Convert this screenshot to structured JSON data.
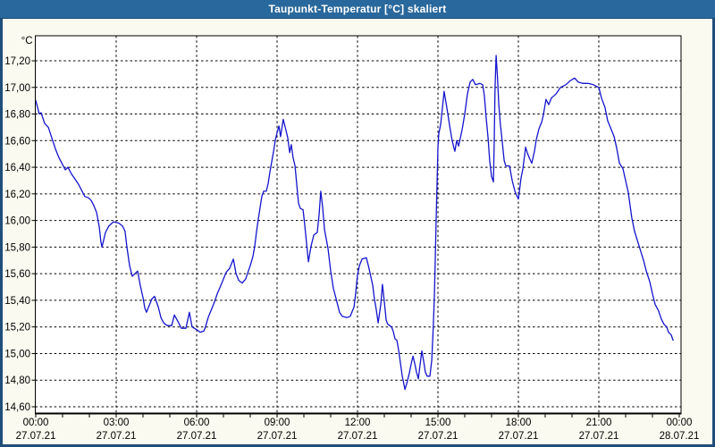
{
  "window": {
    "titlebar": {
      "title": "Taupunkt-Temperatur [°C] skaliert"
    }
  },
  "colors": {
    "titlebar_bg": "#29689c",
    "titlebar_text": "#ffffff",
    "frame": "#1f4e7b",
    "page_bg": "#fafaf0",
    "plot_bg": "#ffffff",
    "grid": "#000000",
    "axis": "#000000",
    "line": "#1414cc",
    "label_text": "#000000"
  },
  "chart_data": {
    "type": "line",
    "title": "Taupunkt-Temperatur [°C] skaliert",
    "y_unit": "°C",
    "grid": {
      "style": "dashed",
      "color": "#000000",
      "horizontal": true,
      "vertical": true
    },
    "legend": "none",
    "ylim": [
      14.57,
      17.39
    ],
    "xlim_hours": [
      0,
      24.07
    ],
    "y_axis": {
      "tick_values": [
        14.6,
        14.8,
        15.0,
        15.2,
        15.4,
        15.6,
        15.8,
        16.0,
        16.2,
        16.4,
        16.6,
        16.8,
        17.0,
        17.2
      ],
      "tick_labels": [
        "14,60",
        "14,80",
        "15,00",
        "15,20",
        "15,40",
        "15,60",
        "15,80",
        "16,00",
        "16,20",
        "16,40",
        "16,60",
        "16,80",
        "17,00",
        "17,20"
      ]
    },
    "x_axis": {
      "minor_tick_every_hours": 1,
      "major_gridline_hours": [
        3,
        6,
        9,
        12,
        15,
        18,
        21
      ],
      "ticks": [
        {
          "hour": 0,
          "time": "00:00",
          "date": "27.07.21"
        },
        {
          "hour": 3,
          "time": "03:00",
          "date": "27.07.21"
        },
        {
          "hour": 6,
          "time": "06:00",
          "date": "27.07.21"
        },
        {
          "hour": 9,
          "time": "09:00",
          "date": "27.07.21"
        },
        {
          "hour": 12,
          "time": "12:00",
          "date": "27.07.21"
        },
        {
          "hour": 15,
          "time": "15:00",
          "date": "27.07.21"
        },
        {
          "hour": 18,
          "time": "18:00",
          "date": "27.07.21"
        },
        {
          "hour": 21,
          "time": "21:00",
          "date": "27.07.21"
        },
        {
          "hour": 24,
          "time": "00:00",
          "date": "28.07.21"
        }
      ]
    },
    "series": [
      {
        "name": "Taupunkt-Temperatur",
        "color": "#1414cc",
        "points_hour_degc": [
          [
            0,
            16.9
          ],
          [
            0.08,
            16.84
          ],
          [
            0.13,
            16.8
          ],
          [
            0.2,
            16.81
          ],
          [
            0.33,
            16.73
          ],
          [
            0.47,
            16.7
          ],
          [
            0.6,
            16.62
          ],
          [
            0.73,
            16.54
          ],
          [
            0.87,
            16.47
          ],
          [
            1,
            16.42
          ],
          [
            1.1,
            16.38
          ],
          [
            1.2,
            16.4
          ],
          [
            1.33,
            16.35
          ],
          [
            1.47,
            16.31
          ],
          [
            1.6,
            16.27
          ],
          [
            1.73,
            16.22
          ],
          [
            1.83,
            16.18
          ],
          [
            1.97,
            16.17
          ],
          [
            2.07,
            16.15
          ],
          [
            2.17,
            16.11
          ],
          [
            2.27,
            16.06
          ],
          [
            2.37,
            15.95
          ],
          [
            2.43,
            15.84
          ],
          [
            2.47,
            15.8
          ],
          [
            2.6,
            15.91
          ],
          [
            2.73,
            15.96
          ],
          [
            2.9,
            15.99
          ],
          [
            3.1,
            15.98
          ],
          [
            3.23,
            15.96
          ],
          [
            3.33,
            15.92
          ],
          [
            3.4,
            15.8
          ],
          [
            3.5,
            15.66
          ],
          [
            3.6,
            15.58
          ],
          [
            3.7,
            15.6
          ],
          [
            3.8,
            15.62
          ],
          [
            3.9,
            15.51
          ],
          [
            4,
            15.42
          ],
          [
            4.07,
            15.34
          ],
          [
            4.13,
            15.31
          ],
          [
            4.23,
            15.36
          ],
          [
            4.33,
            15.41
          ],
          [
            4.43,
            15.43
          ],
          [
            4.57,
            15.35
          ],
          [
            4.67,
            15.27
          ],
          [
            4.77,
            15.23
          ],
          [
            4.9,
            15.21
          ],
          [
            5.07,
            15.21
          ],
          [
            5.17,
            15.29
          ],
          [
            5.33,
            15.23
          ],
          [
            5.43,
            15.19
          ],
          [
            5.6,
            15.19
          ],
          [
            5.73,
            15.31
          ],
          [
            5.83,
            15.2
          ],
          [
            6,
            15.18
          ],
          [
            6.13,
            15.16
          ],
          [
            6.27,
            15.17
          ],
          [
            6.33,
            15.2
          ],
          [
            6.43,
            15.27
          ],
          [
            6.57,
            15.34
          ],
          [
            6.67,
            15.39
          ],
          [
            6.77,
            15.45
          ],
          [
            6.9,
            15.51
          ],
          [
            7,
            15.56
          ],
          [
            7.1,
            15.61
          ],
          [
            7.23,
            15.64
          ],
          [
            7.37,
            15.71
          ],
          [
            7.47,
            15.6
          ],
          [
            7.57,
            15.55
          ],
          [
            7.7,
            15.53
          ],
          [
            7.83,
            15.56
          ],
          [
            7.93,
            15.62
          ],
          [
            8,
            15.66
          ],
          [
            8.1,
            15.73
          ],
          [
            8.17,
            15.81
          ],
          [
            8.23,
            15.91
          ],
          [
            8.3,
            16.01
          ],
          [
            8.37,
            16.1
          ],
          [
            8.43,
            16.18
          ],
          [
            8.5,
            16.22
          ],
          [
            8.6,
            16.22
          ],
          [
            8.67,
            16.28
          ],
          [
            8.73,
            16.36
          ],
          [
            8.8,
            16.44
          ],
          [
            8.87,
            16.52
          ],
          [
            8.93,
            16.6
          ],
          [
            9,
            16.66
          ],
          [
            9.07,
            16.71
          ],
          [
            9.13,
            16.63
          ],
          [
            9.23,
            16.76
          ],
          [
            9.33,
            16.68
          ],
          [
            9.4,
            16.62
          ],
          [
            9.47,
            16.51
          ],
          [
            9.53,
            16.57
          ],
          [
            9.6,
            16.47
          ],
          [
            9.67,
            16.41
          ],
          [
            9.73,
            16.28
          ],
          [
            9.8,
            16.13
          ],
          [
            9.87,
            16.09
          ],
          [
            9.97,
            16.08
          ],
          [
            10.03,
            15.97
          ],
          [
            10.1,
            15.83
          ],
          [
            10.17,
            15.69
          ],
          [
            10.27,
            15.81
          ],
          [
            10.37,
            15.89
          ],
          [
            10.5,
            15.91
          ],
          [
            10.57,
            16.05
          ],
          [
            10.63,
            16.22
          ],
          [
            10.7,
            16.1
          ],
          [
            10.77,
            15.93
          ],
          [
            10.9,
            15.79
          ],
          [
            11,
            15.62
          ],
          [
            11.1,
            15.49
          ],
          [
            11.23,
            15.39
          ],
          [
            11.33,
            15.31
          ],
          [
            11.43,
            15.28
          ],
          [
            11.6,
            15.27
          ],
          [
            11.73,
            15.28
          ],
          [
            11.87,
            15.35
          ],
          [
            11.93,
            15.45
          ],
          [
            12,
            15.59
          ],
          [
            12.07,
            15.66
          ],
          [
            12.17,
            15.71
          ],
          [
            12.33,
            15.72
          ],
          [
            12.43,
            15.64
          ],
          [
            12.57,
            15.51
          ],
          [
            12.63,
            15.41
          ],
          [
            12.7,
            15.33
          ],
          [
            12.77,
            15.23
          ],
          [
            12.87,
            15.37
          ],
          [
            12.93,
            15.52
          ],
          [
            13,
            15.39
          ],
          [
            13.07,
            15.25
          ],
          [
            13.13,
            15.22
          ],
          [
            13.27,
            15.2
          ],
          [
            13.33,
            15.17
          ],
          [
            13.4,
            15.11
          ],
          [
            13.47,
            15.1
          ],
          [
            13.53,
            15.03
          ],
          [
            13.6,
            14.93
          ],
          [
            13.67,
            14.83
          ],
          [
            13.73,
            14.77
          ],
          [
            13.77,
            14.73
          ],
          [
            13.83,
            14.77
          ],
          [
            13.93,
            14.85
          ],
          [
            14,
            14.92
          ],
          [
            14.07,
            14.98
          ],
          [
            14.13,
            14.93
          ],
          [
            14.2,
            14.86
          ],
          [
            14.27,
            14.81
          ],
          [
            14.33,
            14.91
          ],
          [
            14.4,
            15.02
          ],
          [
            14.47,
            14.94
          ],
          [
            14.53,
            14.86
          ],
          [
            14.6,
            14.83
          ],
          [
            14.7,
            14.83
          ],
          [
            14.77,
            14.95
          ],
          [
            14.83,
            15.22
          ],
          [
            14.87,
            15.45
          ],
          [
            14.9,
            15.7
          ],
          [
            14.93,
            15.98
          ],
          [
            14.97,
            16.3
          ],
          [
            15,
            16.55
          ],
          [
            15.03,
            16.65
          ],
          [
            15.1,
            16.72
          ],
          [
            15.17,
            16.85
          ],
          [
            15.23,
            16.97
          ],
          [
            15.33,
            16.85
          ],
          [
            15.43,
            16.72
          ],
          [
            15.53,
            16.6
          ],
          [
            15.63,
            16.52
          ],
          [
            15.7,
            16.6
          ],
          [
            15.77,
            16.56
          ],
          [
            15.9,
            16.68
          ],
          [
            16,
            16.8
          ],
          [
            16.1,
            16.95
          ],
          [
            16.2,
            17.04
          ],
          [
            16.3,
            17.06
          ],
          [
            16.4,
            17.02
          ],
          [
            16.57,
            17.03
          ],
          [
            16.67,
            17.02
          ],
          [
            16.73,
            16.94
          ],
          [
            16.8,
            16.77
          ],
          [
            16.87,
            16.62
          ],
          [
            16.93,
            16.45
          ],
          [
            17,
            16.33
          ],
          [
            17.07,
            16.29
          ],
          [
            17.1,
            16.6
          ],
          [
            17.13,
            17
          ],
          [
            17.17,
            17.24
          ],
          [
            17.22,
            17.08
          ],
          [
            17.27,
            16.87
          ],
          [
            17.33,
            16.72
          ],
          [
            17.4,
            16.59
          ],
          [
            17.47,
            16.45
          ],
          [
            17.53,
            16.41
          ],
          [
            17.67,
            16.41
          ],
          [
            17.77,
            16.3
          ],
          [
            17.87,
            16.22
          ],
          [
            18,
            16.16
          ],
          [
            18.1,
            16.32
          ],
          [
            18.17,
            16.39
          ],
          [
            18.27,
            16.55
          ],
          [
            18.33,
            16.51
          ],
          [
            18.43,
            16.46
          ],
          [
            18.5,
            16.43
          ],
          [
            18.6,
            16.52
          ],
          [
            18.67,
            16.61
          ],
          [
            18.77,
            16.69
          ],
          [
            18.87,
            16.74
          ],
          [
            18.93,
            16.79
          ],
          [
            19.03,
            16.91
          ],
          [
            19.13,
            16.87
          ],
          [
            19.23,
            16.92
          ],
          [
            19.4,
            16.95
          ],
          [
            19.57,
            17
          ],
          [
            19.77,
            17.02
          ],
          [
            19.93,
            17.05
          ],
          [
            20.1,
            17.07
          ],
          [
            20.23,
            17.04
          ],
          [
            20.4,
            17.03
          ],
          [
            20.6,
            17.03
          ],
          [
            20.8,
            17.02
          ],
          [
            21,
            17
          ],
          [
            21.1,
            16.92
          ],
          [
            21.23,
            16.85
          ],
          [
            21.33,
            16.75
          ],
          [
            21.43,
            16.7
          ],
          [
            21.57,
            16.63
          ],
          [
            21.67,
            16.54
          ],
          [
            21.77,
            16.43
          ],
          [
            21.9,
            16.39
          ],
          [
            22,
            16.3
          ],
          [
            22.1,
            16.21
          ],
          [
            22.23,
            16.02
          ],
          [
            22.33,
            15.92
          ],
          [
            22.5,
            15.81
          ],
          [
            22.67,
            15.7
          ],
          [
            22.77,
            15.62
          ],
          [
            22.9,
            15.54
          ],
          [
            23,
            15.45
          ],
          [
            23.1,
            15.37
          ],
          [
            23.23,
            15.32
          ],
          [
            23.33,
            15.26
          ],
          [
            23.43,
            15.22
          ],
          [
            23.53,
            15.2
          ],
          [
            23.6,
            15.16
          ],
          [
            23.7,
            15.14
          ],
          [
            23.77,
            15.1
          ]
        ]
      }
    ]
  }
}
